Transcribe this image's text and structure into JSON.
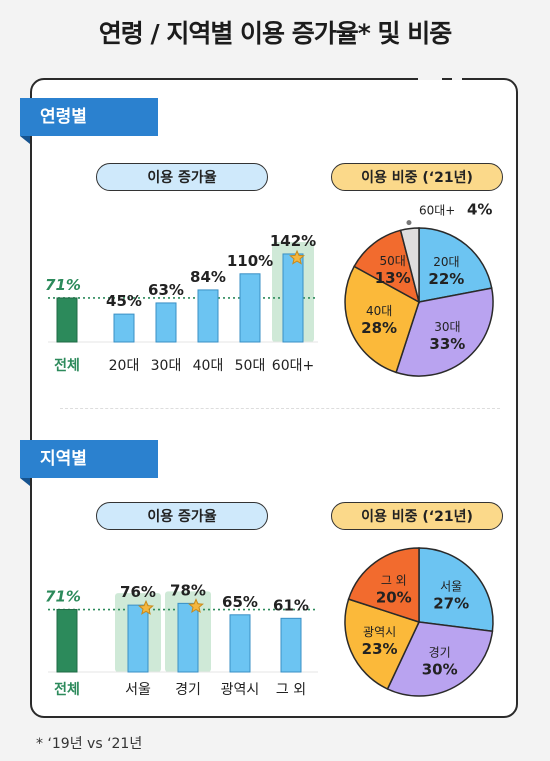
{
  "title": "연령 / 지역별 이용 증가율* 및 비중",
  "footnote": "* ‘19년 vs ‘21년",
  "sections": [
    {
      "tab": "연령별",
      "growth_pill": "이용 증가율",
      "share_pill": "이용 비중 (‘21년)"
    },
    {
      "tab": "지역별",
      "growth_pill": "이용 증가율",
      "share_pill": "이용 비중 (‘21년)"
    }
  ],
  "chart_data": [
    {
      "type": "bar",
      "categories": [
        "전체",
        "20대",
        "30대",
        "40대",
        "50대",
        "60대+"
      ],
      "values": [
        71,
        45,
        63,
        84,
        110,
        142
      ],
      "labels": [
        "71%",
        "45%",
        "63%",
        "84%",
        "110%",
        "142%"
      ],
      "reference_line": 71,
      "highlight": [
        "60대+"
      ],
      "colors": {
        "total": "#2c8a5b",
        "bar": "#6cc4f2",
        "highlight_bg": "#cfe9d7",
        "star": "#f4b740"
      }
    },
    {
      "type": "pie",
      "slices": [
        {
          "label": "20대",
          "value": 22,
          "text": "22%",
          "color": "#6cc4f2"
        },
        {
          "label": "30대",
          "value": 33,
          "text": "33%",
          "color": "#b9a3f0"
        },
        {
          "label": "40대",
          "value": 28,
          "text": "28%",
          "color": "#fbb93a"
        },
        {
          "label": "50대",
          "value": 13,
          "text": "13%",
          "color": "#f26b2e"
        },
        {
          "label": "60대+",
          "value": 4,
          "text": "4%",
          "color": "#dedede"
        }
      ]
    },
    {
      "type": "bar",
      "categories": [
        "전체",
        "서울",
        "경기",
        "광역시",
        "그 외"
      ],
      "values": [
        71,
        76,
        78,
        65,
        61
      ],
      "labels": [
        "71%",
        "76%",
        "78%",
        "65%",
        "61%"
      ],
      "reference_line": 71,
      "highlight": [
        "서울",
        "경기"
      ],
      "colors": {
        "total": "#2c8a5b",
        "bar": "#6cc4f2",
        "highlight_bg": "#cfe9d7",
        "star": "#f4b740"
      }
    },
    {
      "type": "pie",
      "slices": [
        {
          "label": "서울",
          "value": 27,
          "text": "27%",
          "color": "#6cc4f2"
        },
        {
          "label": "경기",
          "value": 30,
          "text": "30%",
          "color": "#b9a3f0"
        },
        {
          "label": "광역시",
          "value": 23,
          "text": "23%",
          "color": "#fbb93a"
        },
        {
          "label": "그 외",
          "value": 20,
          "text": "20%",
          "color": "#f26b2e"
        }
      ]
    }
  ]
}
